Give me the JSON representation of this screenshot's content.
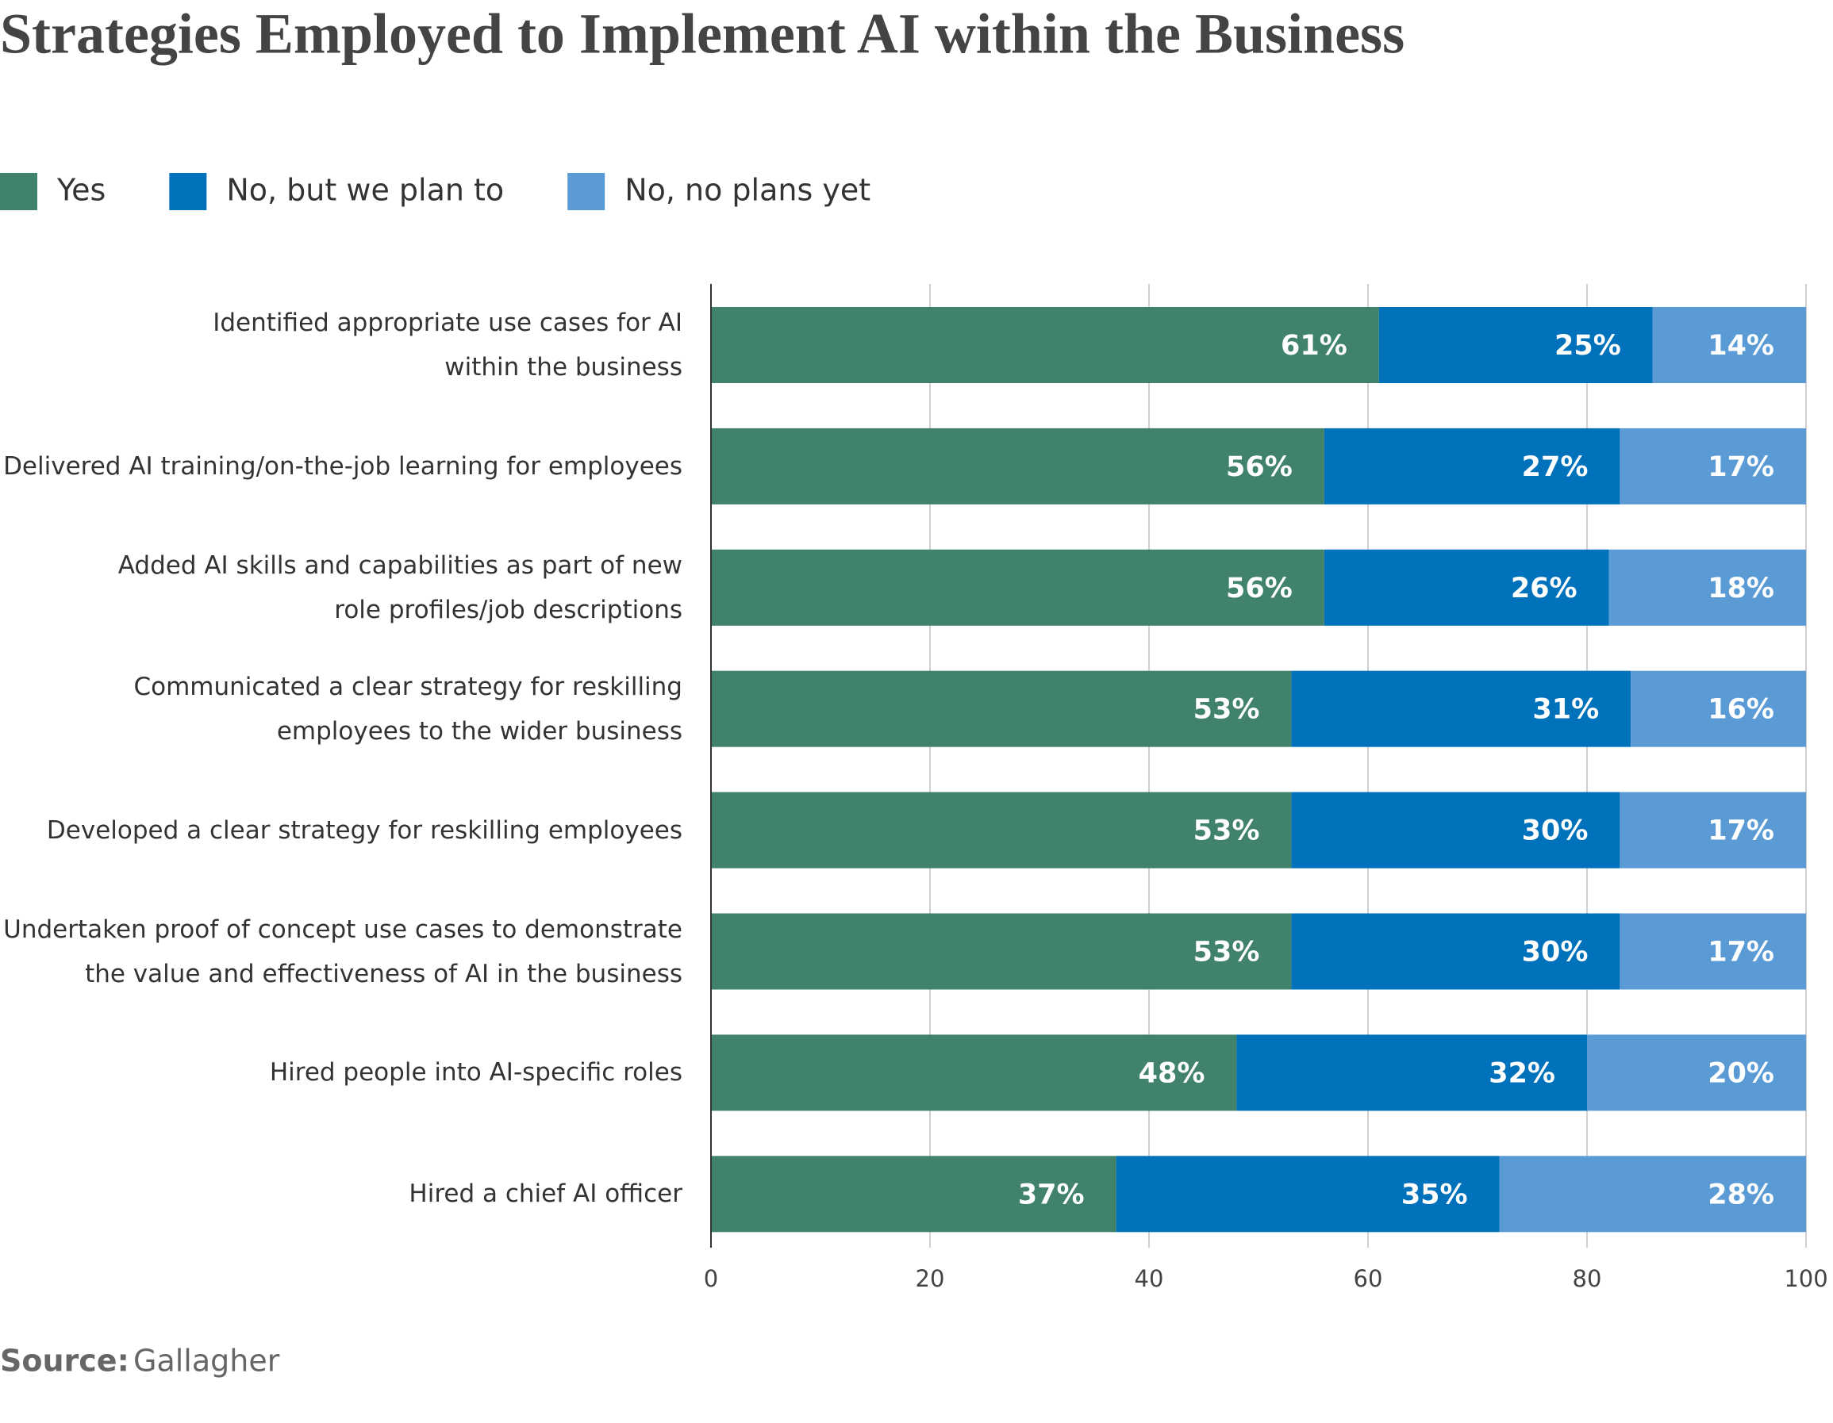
{
  "chart_data": {
    "type": "stacked_barh",
    "title": "Strategies Employed to Implement AI within the Business",
    "categories": [
      "Identified appropriate use cases for AI\nwithin the business",
      "Delivered AI training/on-the-job learning for employees",
      "Added AI skills and capabilities as part of new\nrole profiles/job descriptions",
      "Communicated a clear strategy for reskilling\nemployees to the wider business",
      "Developed a clear strategy for reskilling employees",
      "Undertaken proof of concept use cases to demonstrate\nthe value and effectiveness of AI in the business",
      "Hired people into AI-specific roles",
      "Hired a chief AI officer"
    ],
    "series": [
      {
        "name": "Yes",
        "color": "#40836a",
        "values": [
          61,
          56,
          56,
          53,
          53,
          53,
          48,
          37
        ],
        "value_labels": [
          "61%",
          "56%",
          "56%",
          "53%",
          "53%",
          "53%",
          "48%",
          "37%"
        ]
      },
      {
        "name": "No, but we plan to",
        "color": "#0072bc",
        "values": [
          25,
          27,
          26,
          31,
          30,
          30,
          32,
          35
        ],
        "value_labels": [
          "25%",
          "27%",
          "26%",
          "31%",
          "30%",
          "30%",
          "32%",
          "35%"
        ]
      },
      {
        "name": "No, no plans yet",
        "color": "#5b9bd5",
        "values": [
          14,
          17,
          18,
          16,
          17,
          17,
          20,
          28
        ],
        "value_labels": [
          "14%",
          "17%",
          "18%",
          "16%",
          "17%",
          "17%",
          "20%",
          "28%"
        ]
      }
    ],
    "xlim": [
      0,
      100
    ],
    "xticks": [
      0,
      20,
      40,
      60,
      80,
      100
    ],
    "grid": true,
    "legend": "top-left",
    "source": {
      "label": "Source:",
      "text": "Gallagher"
    }
  }
}
